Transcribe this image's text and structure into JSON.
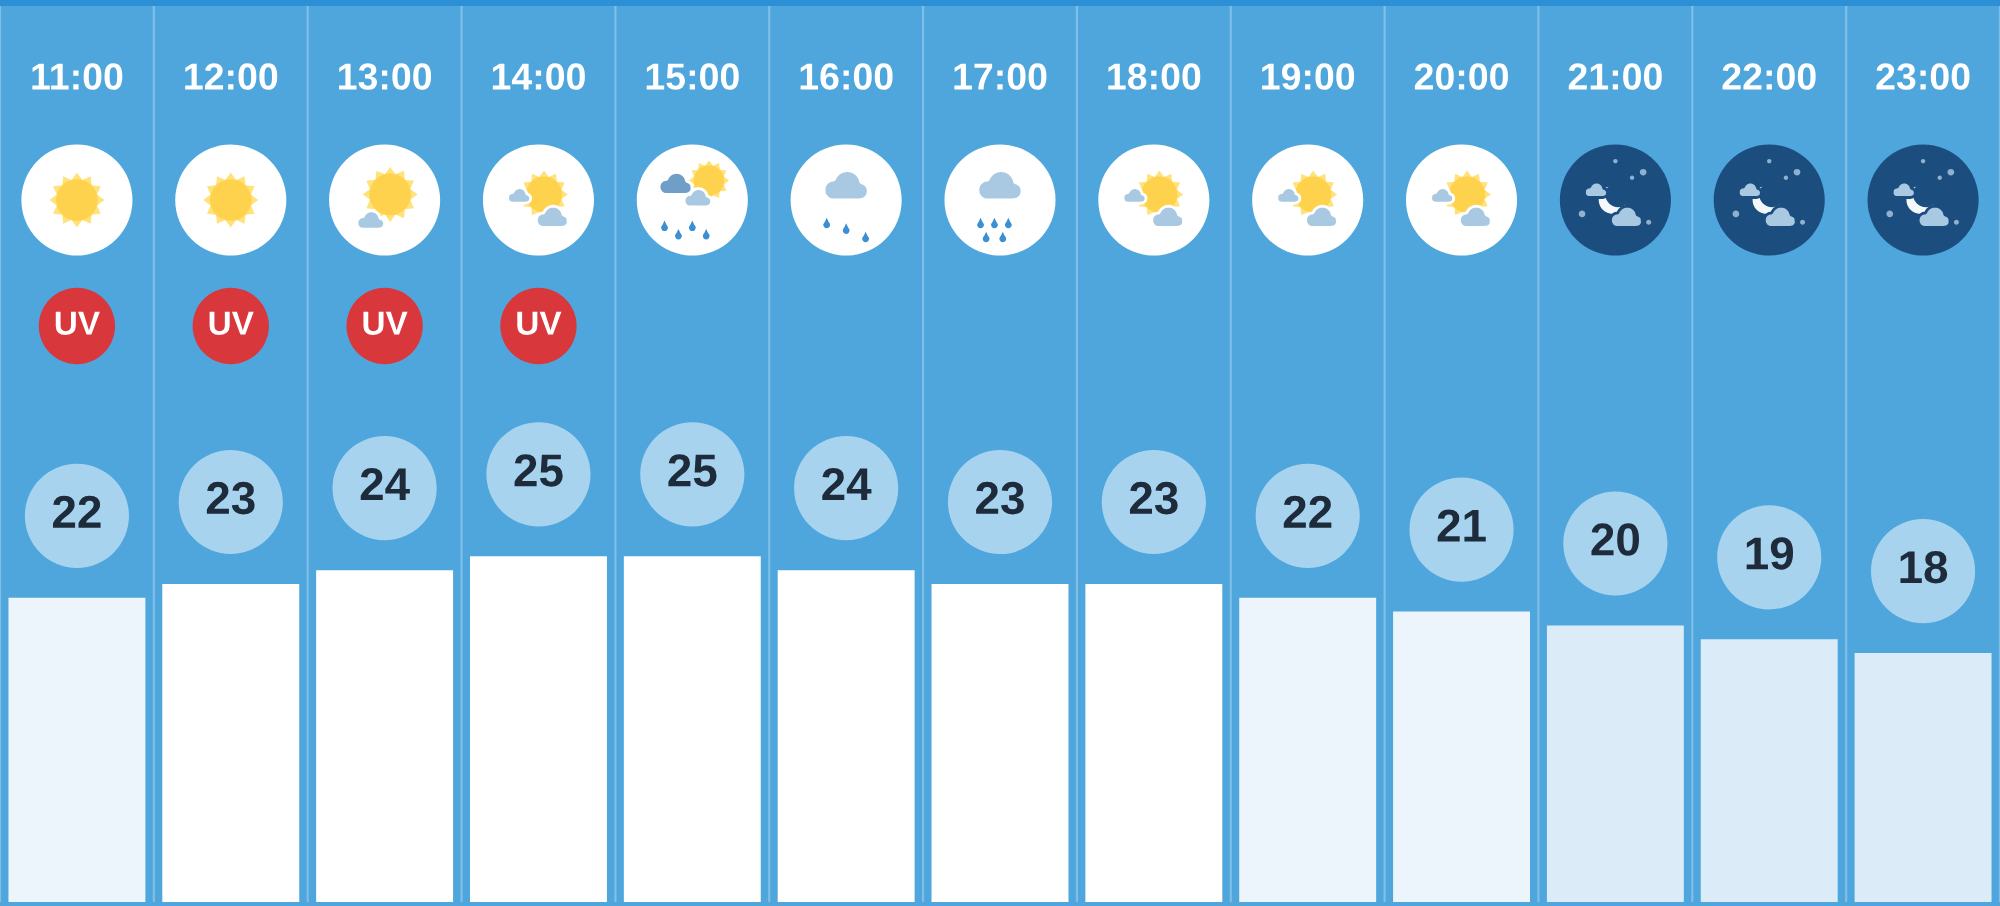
{
  "chart_data": {
    "type": "bar",
    "categories": [
      "11:00",
      "12:00",
      "13:00",
      "14:00",
      "15:00",
      "16:00",
      "17:00",
      "18:00",
      "19:00",
      "20:00",
      "21:00",
      "22:00",
      "23:00"
    ],
    "values": [
      22,
      23,
      24,
      25,
      25,
      24,
      23,
      23,
      22,
      21,
      20,
      19,
      18
    ],
    "colors": [
      "#edf5fc",
      "#ffffff",
      "#ffffff",
      "#ffffff",
      "#ffffff",
      "#ffffff",
      "#ffffff",
      "#ffffff",
      "#edf5fc",
      "#edf5fc",
      "#dbecf8",
      "#dbecf8",
      "#dbecf8"
    ],
    "data_labels": true,
    "grid": "x",
    "tick_labels": "x",
    "annotations": [
      "UV",
      "UV",
      "UV",
      "UV"
    ]
  }
}
